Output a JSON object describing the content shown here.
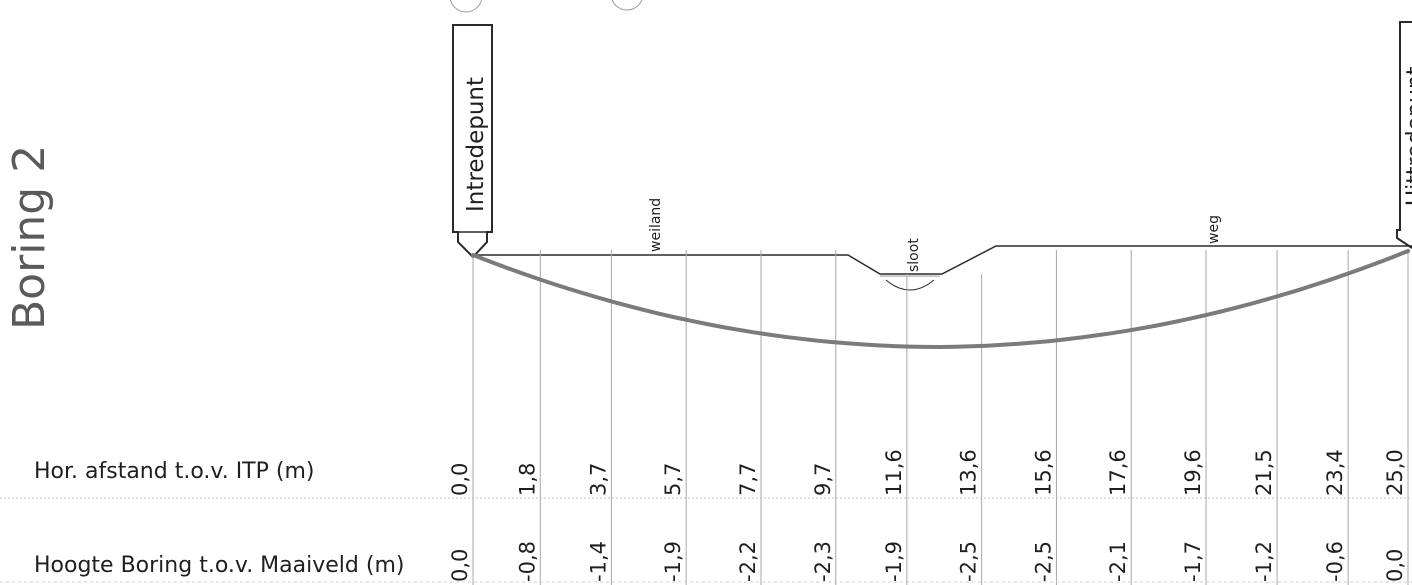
{
  "title": "Boring 2",
  "entry_point_label": "Intredepunt",
  "exit_point_label": "Uittredepunt",
  "terrain_labels": {
    "meadow": "weiland",
    "ditch": "sloot",
    "road": "weg"
  },
  "row_labels": {
    "horizontal_distance": "Hor. afstand t.o.v. ITP (m)",
    "boring_height": "Hoogte Boring t.o.v. Maaiveld (m)"
  },
  "stations": [
    {
      "distance": "0,0",
      "height": "0,0"
    },
    {
      "distance": "1,8",
      "height": "-0,8"
    },
    {
      "distance": "3,7",
      "height": "-1,4"
    },
    {
      "distance": "5,7",
      "height": "-1,9"
    },
    {
      "distance": "7,7",
      "height": "-2,2"
    },
    {
      "distance": "9,7",
      "height": "-2,3"
    },
    {
      "distance": "11,6",
      "height": "-1,9"
    },
    {
      "distance": "13,6",
      "height": "-2,5"
    },
    {
      "distance": "15,6",
      "height": "-2,5"
    },
    {
      "distance": "17,6",
      "height": "-2,1"
    },
    {
      "distance": "19,6",
      "height": "-1,7"
    },
    {
      "distance": "21,5",
      "height": "-1,2"
    },
    {
      "distance": "23,4",
      "height": "-0,6"
    },
    {
      "distance": "25,0",
      "height": "0,0"
    }
  ],
  "colors": {
    "ink": "#2a2a2a",
    "profile": "#7b7b7b",
    "grid": "#9a9a9a"
  }
}
